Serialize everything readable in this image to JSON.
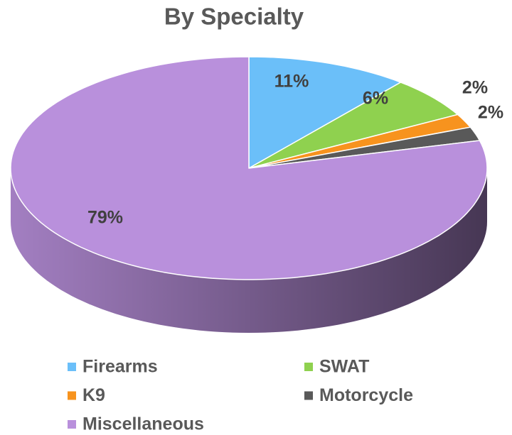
{
  "chart_data": {
    "type": "pie",
    "title": "By Specialty",
    "categories": [
      "Firearms",
      "SWAT",
      "K9",
      "Motorcycle",
      "Miscellaneous"
    ],
    "values": [
      11,
      6,
      2,
      2,
      79
    ],
    "value_labels": [
      "11%",
      "6%",
      "2%",
      "2%",
      "79%"
    ],
    "colors": [
      "#6bbff9",
      "#8fd14f",
      "#f7931e",
      "#595959",
      "#b990dc"
    ],
    "legend": "bottom"
  }
}
